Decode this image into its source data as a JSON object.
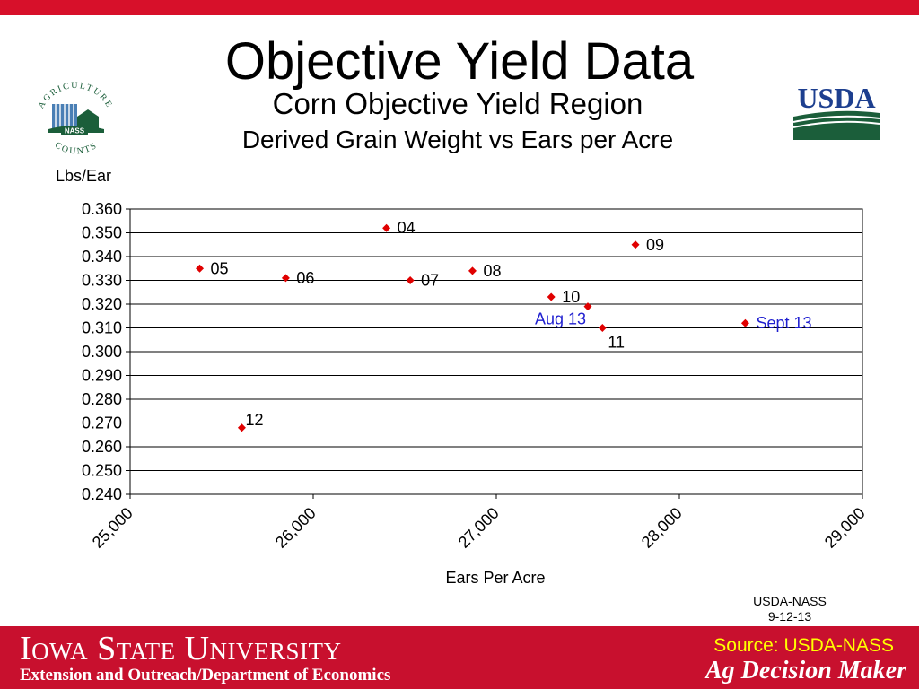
{
  "slide": {
    "title": "Objective Yield Data",
    "source_note_line1": "USDA-NASS",
    "source_note_line2": "9-12-13"
  },
  "logos": {
    "nass": {
      "top_text": "AGRICULTURE",
      "bottom_text": "COUNTS",
      "badge": "NASS"
    },
    "usda": {
      "text": "USDA"
    }
  },
  "footer": {
    "university": "Iowa State University",
    "department": "Extension and Outreach/Department of Economics",
    "source": "Source: USDA-NASS",
    "brand": "Ag Decision Maker"
  },
  "colors": {
    "brand_red": "#c8102e",
    "marker_red": "#e00000",
    "highlight_blue": "#1f1fd0",
    "usda_green": "#1b5e3a",
    "usda_blue": "#1d3f8f",
    "footer_source_yellow": "#ffff00"
  },
  "chart_data": {
    "type": "scatter",
    "title": "Corn Objective Yield Region",
    "subtitle": "Derived Grain Weight vs Ears per Acre",
    "xlabel": "Ears Per Acre",
    "ylabel": "Lbs/Ear",
    "xlim": [
      25000,
      29000
    ],
    "ylim": [
      0.24,
      0.36
    ],
    "xticks": [
      25000,
      26000,
      27000,
      28000,
      29000
    ],
    "xtick_labels": [
      "25,000",
      "26,000",
      "27,000",
      "28,000",
      "29,000"
    ],
    "yticks": [
      0.24,
      0.25,
      0.26,
      0.27,
      0.28,
      0.29,
      0.3,
      0.31,
      0.32,
      0.33,
      0.34,
      0.35,
      0.36
    ],
    "ytick_labels": [
      "0.240",
      "0.250",
      "0.260",
      "0.270",
      "0.280",
      "0.290",
      "0.300",
      "0.310",
      "0.320",
      "0.330",
      "0.340",
      "0.350",
      "0.360"
    ],
    "grid": "horizontal",
    "points": [
      {
        "label": "04",
        "x": 26400,
        "y": 0.352,
        "highlight": false,
        "label_side": "right"
      },
      {
        "label": "05",
        "x": 25380,
        "y": 0.335,
        "highlight": false,
        "label_side": "right"
      },
      {
        "label": "06",
        "x": 25850,
        "y": 0.331,
        "highlight": false,
        "label_side": "right"
      },
      {
        "label": "07",
        "x": 26530,
        "y": 0.33,
        "highlight": false,
        "label_side": "right"
      },
      {
        "label": "08",
        "x": 26870,
        "y": 0.334,
        "highlight": false,
        "label_side": "right"
      },
      {
        "label": "09",
        "x": 27760,
        "y": 0.345,
        "highlight": false,
        "label_side": "right"
      },
      {
        "label": "10",
        "x": 27300,
        "y": 0.323,
        "highlight": false,
        "label_side": "right"
      },
      {
        "label": "11",
        "x": 27580,
        "y": 0.31,
        "highlight": false,
        "label_side": "below"
      },
      {
        "label": "12",
        "x": 25610,
        "y": 0.268,
        "highlight": false,
        "label_side": "above-right"
      },
      {
        "label": "Aug 13",
        "x": 27500,
        "y": 0.319,
        "highlight": true,
        "label_side": "below-left"
      },
      {
        "label": "Sept 13",
        "x": 28360,
        "y": 0.312,
        "highlight": true,
        "label_side": "right"
      }
    ]
  }
}
